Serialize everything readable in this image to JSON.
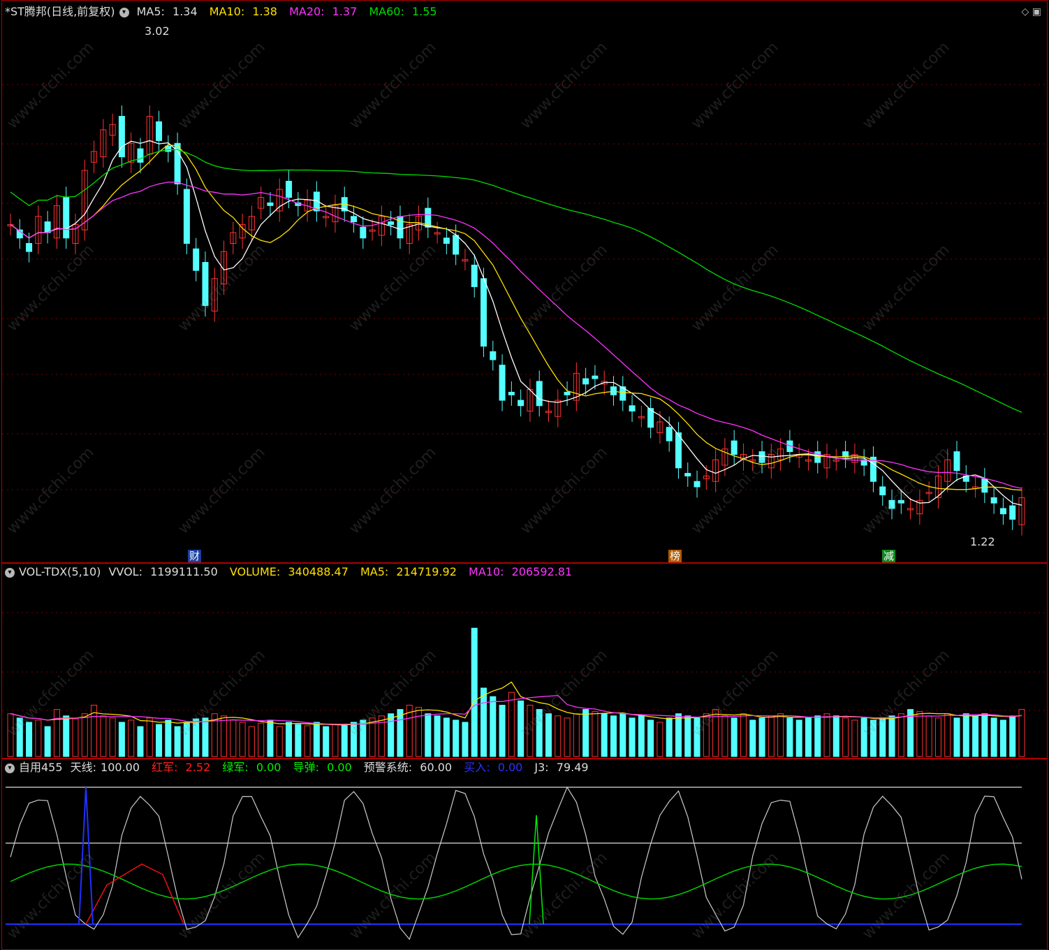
{
  "price_panel": {
    "title": "*ST腾邦(日线,前复权)",
    "ma5_label": "MA5:",
    "ma5_value": "1.34",
    "ma10_label": "MA10:",
    "ma10_value": "1.38",
    "ma20_label": "MA20:",
    "ma20_value": "1.37",
    "ma60_label": "MA60:",
    "ma60_value": "1.55",
    "high_tag": "3.02",
    "low_tag": "1.22",
    "markers": [
      "财",
      "榜",
      "减"
    ],
    "colors": {
      "ma5": "#ffffff",
      "ma10": "#ffe000",
      "ma20": "#ff33ff",
      "ma60": "#00dd00",
      "up": "#ff3232",
      "down": "#54ffff"
    }
  },
  "volume_panel": {
    "title": "VOL-TDX(5,10)",
    "vvol_label": "VVOL:",
    "vvol_value": "1199111.50",
    "volume_label": "VOLUME:",
    "volume_value": "340488.47",
    "ma5_label": "MA5:",
    "ma5_value": "214719.92",
    "ma10_label": "MA10:",
    "ma10_value": "206592.81"
  },
  "indicator_panel": {
    "title": "自用455",
    "tianxian_label": "天线:",
    "tianxian_value": "100.00",
    "hongjun_label": "红军:",
    "hongjun_value": "2.52",
    "lvjun_label": "绿军:",
    "lvjun_value": "0.00",
    "daodan_label": "导弹:",
    "daodan_value": "0.00",
    "yujing_label": "预警系统:",
    "yujing_value": "60.00",
    "mairu_label": "买入:",
    "mairu_value": "0.00",
    "j3_label": "J3:",
    "j3_value": "79.49"
  },
  "watermark": "www.cfchi.com",
  "chart_data": {
    "type": "candlestick",
    "price_high": 3.02,
    "price_low": 1.22,
    "closes": [
      2.35,
      2.3,
      2.25,
      2.38,
      2.32,
      2.42,
      2.3,
      2.35,
      2.55,
      2.62,
      2.7,
      2.72,
      2.6,
      2.65,
      2.58,
      2.75,
      2.66,
      2.62,
      2.5,
      2.28,
      2.18,
      2.05,
      2.15,
      2.25,
      2.32,
      2.35,
      2.38,
      2.45,
      2.42,
      2.48,
      2.45,
      2.42,
      2.44,
      2.4,
      2.38,
      2.42,
      2.4,
      2.36,
      2.3,
      2.33,
      2.38,
      2.35,
      2.3,
      2.35,
      2.38,
      2.34,
      2.32,
      2.28,
      2.24,
      2.22,
      2.12,
      1.9,
      1.85,
      1.7,
      1.72,
      1.68,
      1.74,
      1.68,
      1.66,
      1.7,
      1.72,
      1.8,
      1.76,
      1.78,
      1.77,
      1.72,
      1.7,
      1.66,
      1.64,
      1.6,
      1.62,
      1.55,
      1.45,
      1.42,
      1.38,
      1.42,
      1.48,
      1.52,
      1.5,
      1.5,
      1.48,
      1.47,
      1.5,
      1.52,
      1.51,
      1.5,
      1.48,
      1.47,
      1.5,
      1.48,
      1.49,
      1.5,
      1.46,
      1.4,
      1.35,
      1.3,
      1.32,
      1.3,
      1.33,
      1.36,
      1.42,
      1.48,
      1.44,
      1.4,
      1.38,
      1.36,
      1.32,
      1.28,
      1.26,
      1.34
    ],
    "volumes": [
      100,
      90,
      80,
      85,
      70,
      110,
      95,
      88,
      100,
      120,
      95,
      90,
      80,
      85,
      70,
      90,
      75,
      85,
      70,
      80,
      88,
      90,
      100,
      95,
      85,
      80,
      70,
      78,
      85,
      70,
      80,
      75,
      72,
      80,
      70,
      75,
      72,
      80,
      85,
      90,
      95,
      100,
      110,
      120,
      115,
      100,
      95,
      90,
      85,
      80,
      300,
      160,
      140,
      120,
      150,
      130,
      120,
      110,
      100,
      95,
      90,
      100,
      110,
      105,
      100,
      95,
      100,
      90,
      95,
      85,
      80,
      90,
      100,
      95,
      90,
      100,
      110,
      95,
      90,
      100,
      85,
      90,
      95,
      100,
      90,
      85,
      90,
      95,
      100,
      95,
      90,
      85,
      90,
      85,
      90,
      95,
      100,
      110,
      105,
      95,
      90,
      100,
      90,
      100,
      95,
      100,
      90,
      85,
      95,
      110
    ],
    "series": [
      {
        "name": "MA5",
        "last": 1.34
      },
      {
        "name": "MA10",
        "last": 1.38
      },
      {
        "name": "MA20",
        "last": 1.37
      },
      {
        "name": "MA60",
        "last": 1.55
      }
    ]
  }
}
